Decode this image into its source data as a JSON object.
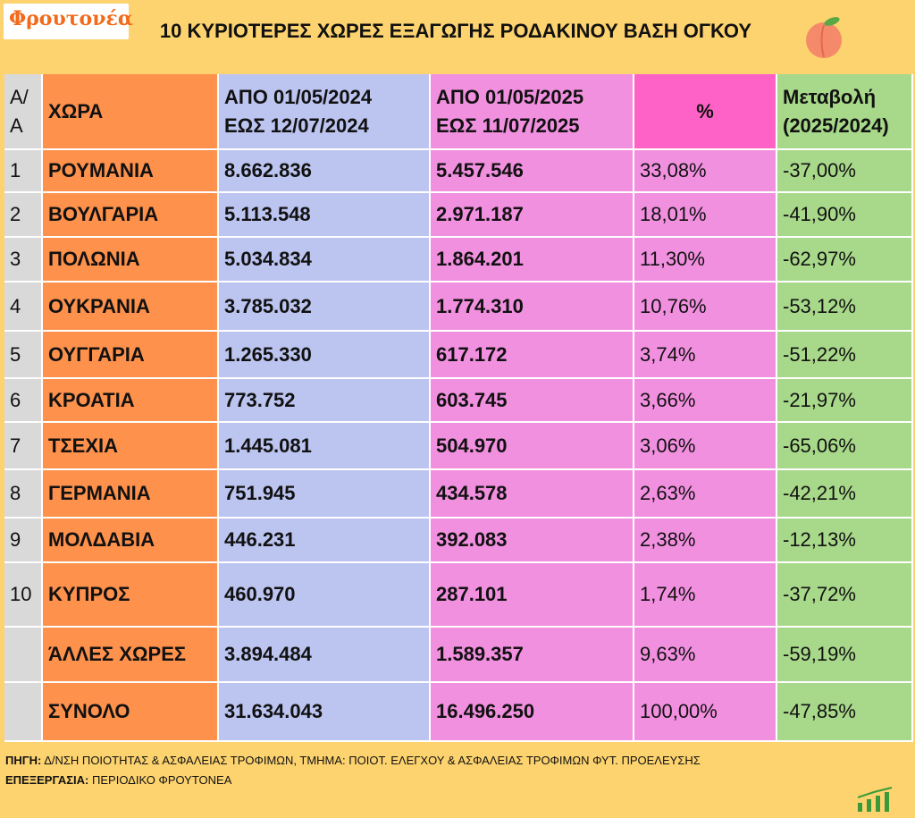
{
  "header": {
    "logo": "Φρουτονέα",
    "title": "10 ΚΥΡΙΟΤΕΡΕΣ ΧΩΡΕΣ ΕΞΑΓΩΓΗΣ ΡΟΔΑΚΙΝΟΥ ΒΑΣΗ ΟΓΚΟΥ"
  },
  "table": {
    "columns": [
      [
        "Α/",
        "Α"
      ],
      [
        "ΧΩΡΑ"
      ],
      [
        "ΑΠΟ 01/05/2024",
        "ΕΩΣ  12/07/2024"
      ],
      [
        "ΑΠΟ 01/05/2025",
        "ΕΩΣ  11/07/2025"
      ],
      [
        "%"
      ],
      [
        "Μεταβολή",
        "(2025/2024)"
      ]
    ],
    "rows": [
      [
        1,
        "ΡΟΥΜΑΝΙΑ",
        "8.662.836",
        "5.457.546",
        "33,08%",
        "-37,00%"
      ],
      [
        2,
        "ΒΟΥΛΓΑΡΙΑ",
        "5.113.548",
        "2.971.187",
        "18,01%",
        "-41,90%"
      ],
      [
        3,
        "ΠΟΛΩΝΙΑ",
        "5.034.834",
        "1.864.201",
        "11,30%",
        "-62,97%"
      ],
      [
        4,
        "ΟΥΚΡΑΝΙΑ",
        "3.785.032",
        "1.774.310",
        "10,76%",
        "-53,12%"
      ],
      [
        5,
        "ΟΥΓΓΑΡΙΑ",
        "1.265.330",
        "617.172",
        "3,74%",
        "-51,22%"
      ],
      [
        6,
        "ΚΡΟΑΤΙΑ",
        "773.752",
        "603.745",
        "3,66%",
        "-21,97%"
      ],
      [
        7,
        "ΤΣΕΧΙΑ",
        "1.445.081",
        "504.970",
        "3,06%",
        "-65,06%"
      ],
      [
        8,
        "ΓΕΡΜΑΝΙΑ",
        "751.945",
        "434.578",
        "2,63%",
        "-42,21%"
      ],
      [
        9,
        "ΜΟΛΔΑΒΙΑ",
        "446.231",
        "392.083",
        "2,38%",
        "-12,13%"
      ],
      [
        10,
        "ΚΥΠΡΟΣ",
        "460.970",
        "287.101",
        "1,74%",
        "-37,72%"
      ],
      [
        null,
        "ΆΛΛΕΣ ΧΩΡΕΣ",
        "3.894.484",
        "1.589.357",
        "9,63%",
        "-59,19%"
      ],
      [
        null,
        "ΣΥΝΟΛΟ",
        "31.634.043",
        "16.496.250",
        "100,00%",
        "-47,85%"
      ]
    ]
  },
  "footer": [
    {
      "label": "ΠΗΓΗ:",
      "text": "Δ/ΝΣΗ ΠΟΙΟΤΗΤΑΣ & ΑΣΦΑΛΕΙΑΣ ΤΡΟΦΙΜΩΝ, ΤΜΗΜΑ: ΠΟΙΟΤ. ΕΛΕΓΧΟΥ & ΑΣΦΑΛΕΙΑΣ ΤΡΟΦΙΜΩΝ ΦΥΤ. ΠΡΟΕΛΕΥΣΗΣ"
    },
    {
      "label": "ΕΠΕΞΕΡΓΑΣΙΑ:",
      "text": "ΠΕΡΙΟΔΙΚΟ ΦΡΟΥΤΟΝΕΑ"
    }
  ]
}
